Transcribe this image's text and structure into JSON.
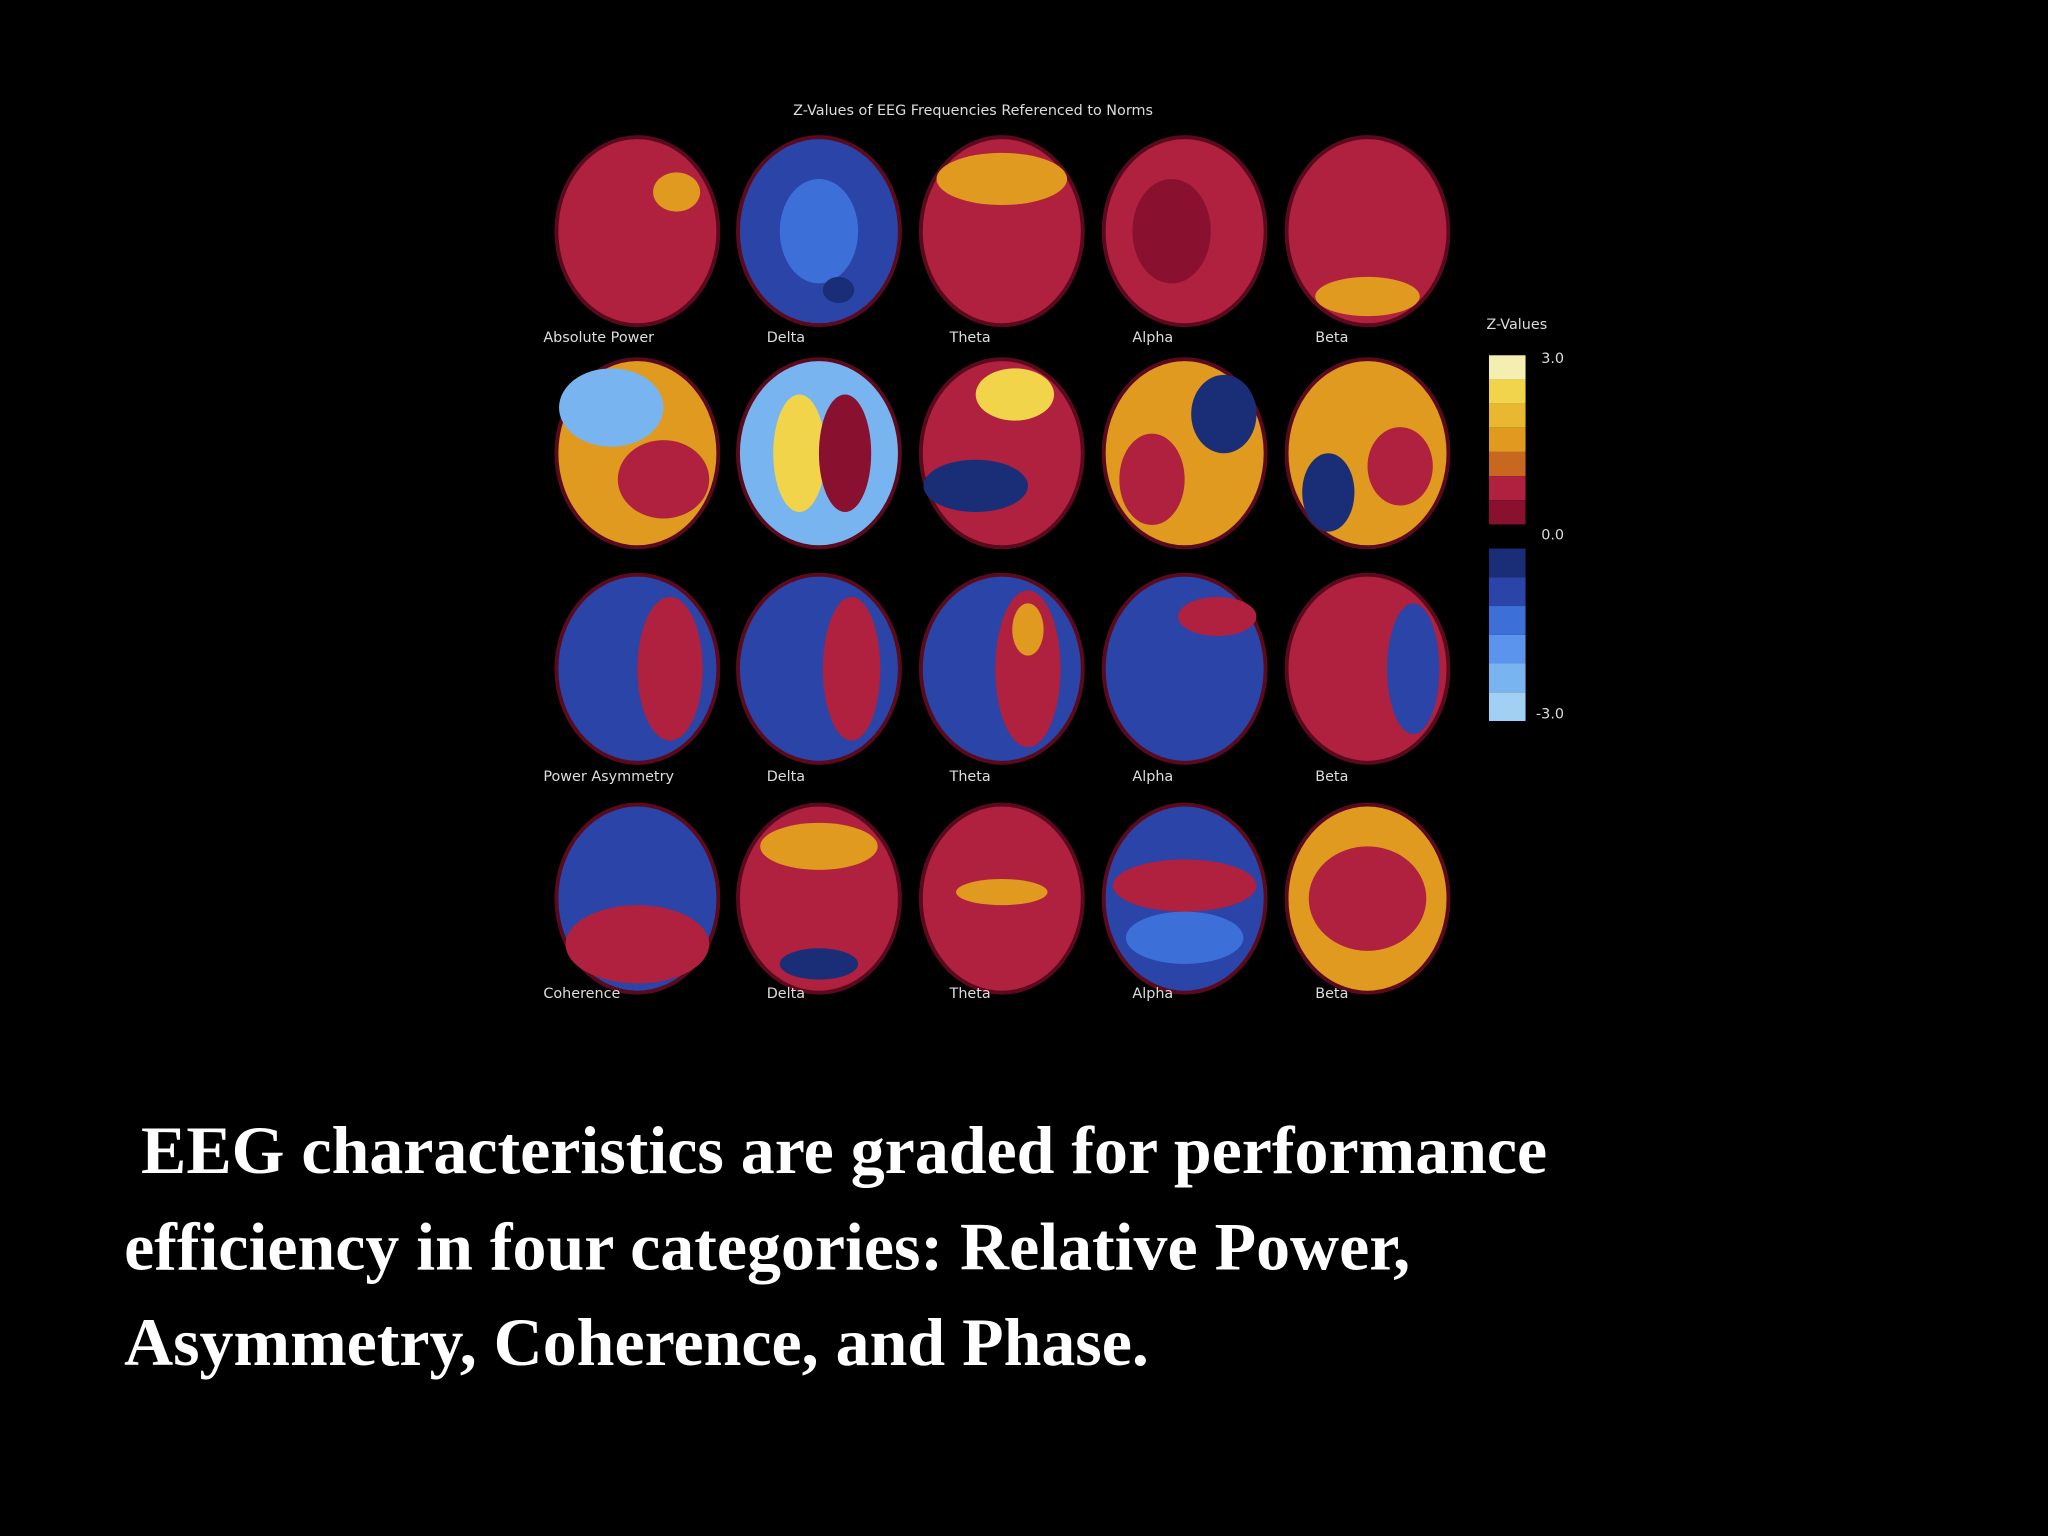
{
  "figure": {
    "title": "Z-Values of EEG Frequencies Referenced to Norms",
    "legend": {
      "title": "Z-Values",
      "labels": [
        "3.0",
        "0.0",
        "-3.0"
      ]
    },
    "rows": [
      {
        "name": "Absolute Power",
        "bands": [
          "Delta",
          "Theta",
          "Alpha",
          "Beta"
        ]
      },
      {
        "name": "Power Asymmetry",
        "bands": [
          "Delta",
          "Theta",
          "Alpha",
          "Beta"
        ]
      },
      {
        "name": "Coherence",
        "bands": [
          "Delta",
          "Theta",
          "Alpha",
          "Beta"
        ]
      }
    ]
  },
  "caption": [
    " EEG characteristics are graded for performance",
    "efficiency in four categories: Relative Power,",
    "Asymmetry, Coherence, and Phase."
  ]
}
